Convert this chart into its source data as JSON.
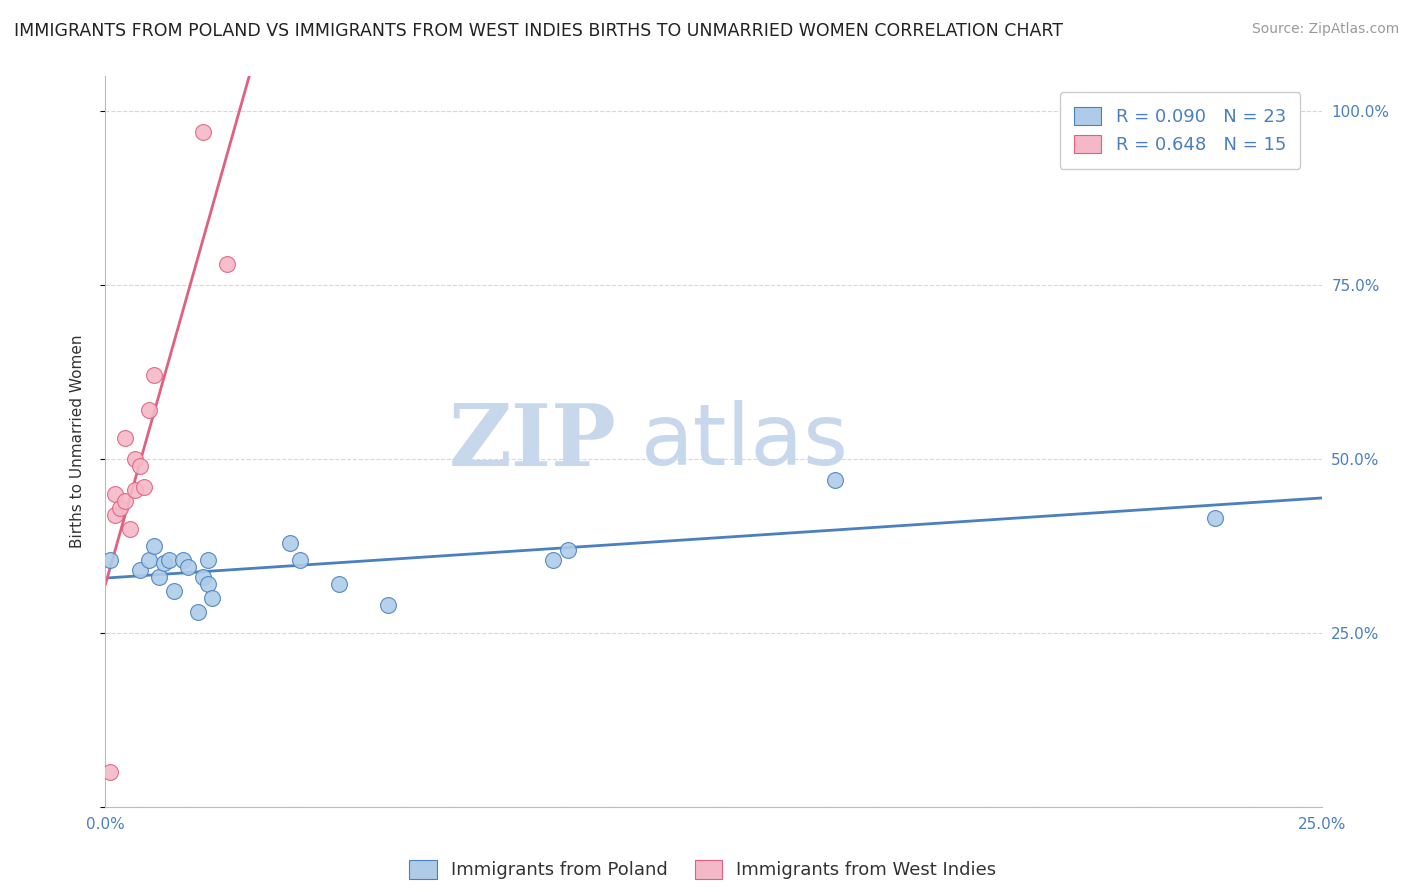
{
  "title": "IMMIGRANTS FROM POLAND VS IMMIGRANTS FROM WEST INDIES BIRTHS TO UNMARRIED WOMEN CORRELATION CHART",
  "source": "Source: ZipAtlas.com",
  "ylabel": "Births to Unmarried Women",
  "legend_blue_R": "R = 0.090",
  "legend_blue_N": "N = 23",
  "legend_pink_R": "R = 0.648",
  "legend_pink_N": "N = 15",
  "blue_color": "#aecce8",
  "pink_color": "#f5b8c8",
  "blue_line_color": "#4a7fc1",
  "pink_line_color": "#e06080",
  "watermark_zip": "ZIP",
  "watermark_atlas": "atlas",
  "blue_scatter_x": [
    0.001,
    0.007,
    0.009,
    0.01,
    0.011,
    0.012,
    0.013,
    0.014,
    0.016,
    0.017,
    0.019,
    0.02,
    0.021,
    0.021,
    0.022,
    0.038,
    0.04,
    0.048,
    0.058,
    0.092,
    0.095,
    0.15,
    0.228
  ],
  "blue_scatter_y": [
    0.355,
    0.34,
    0.355,
    0.375,
    0.33,
    0.35,
    0.355,
    0.31,
    0.355,
    0.345,
    0.28,
    0.33,
    0.355,
    0.32,
    0.3,
    0.38,
    0.355,
    0.32,
    0.29,
    0.355,
    0.37,
    0.47,
    0.415
  ],
  "pink_scatter_x": [
    0.001,
    0.002,
    0.002,
    0.003,
    0.004,
    0.004,
    0.005,
    0.006,
    0.006,
    0.007,
    0.008,
    0.009,
    0.01,
    0.02,
    0.025
  ],
  "pink_scatter_y": [
    0.05,
    0.42,
    0.45,
    0.43,
    0.44,
    0.53,
    0.4,
    0.455,
    0.5,
    0.49,
    0.46,
    0.57,
    0.62,
    0.97,
    0.78
  ],
  "xmin": 0.0,
  "xmax": 0.25,
  "ymin": 0.0,
  "ymax": 1.05,
  "yticks": [
    0.0,
    0.25,
    0.5,
    0.75,
    1.0
  ],
  "ytick_labels_right": [
    "",
    "25.0%",
    "50.0%",
    "75.0%",
    "100.0%"
  ],
  "xtick_positions": [
    0.0,
    0.25
  ],
  "xtick_labels": [
    "0.0%",
    "25.0%"
  ],
  "grid_color": "#d8d8d8",
  "title_fontsize": 12.5,
  "axis_label_fontsize": 11,
  "tick_fontsize": 11,
  "legend_fontsize": 13,
  "watermark_color_zip": "#c8d8ec",
  "watermark_color_atlas": "#c8d8ec",
  "source_fontsize": 10,
  "background_color": "#ffffff"
}
